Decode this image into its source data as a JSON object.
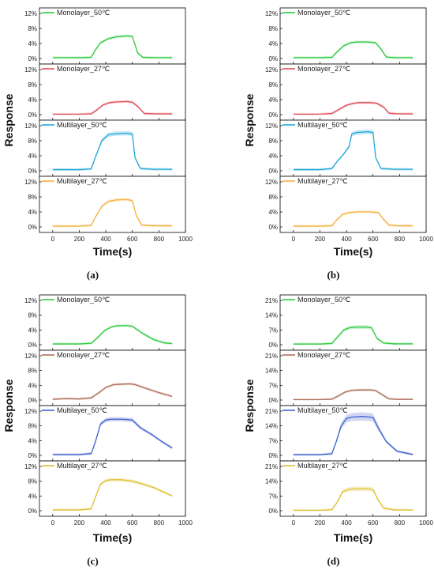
{
  "figure": {
    "panel_labels": [
      "(a)",
      "(b)",
      "(c)",
      "(d)"
    ],
    "ylabel": "Response",
    "xlabel": "Time(s)"
  },
  "colors": {
    "Monolayer_50": "#2ecc40",
    "Monolayer_27": "#e0505a",
    "Multilayer_50": "#1fa7d8",
    "Multilayer_27": "#f4b342",
    "Monolayer_27_c": "#b0705a",
    "Multilayer_50_c": "#4060d0",
    "Multilayer_27_c": "#e0c030",
    "band_opacity": 0.25
  },
  "chart_data": [
    {
      "panel": "(a)",
      "type": "line",
      "xlim": [
        -100,
        1000
      ],
      "x_ticks": [
        0,
        200,
        400,
        600,
        800,
        1000
      ],
      "ylim": [
        0,
        12
      ],
      "y_ticks": [
        0,
        4,
        8,
        12
      ],
      "y_tick_labels": [
        "0%",
        "4%",
        "8%",
        "12%"
      ],
      "series": [
        {
          "name": "Monolayer_50℃",
          "color_key": "Monolayer_50",
          "x": [
            0,
            200,
            290,
            320,
            360,
            420,
            480,
            560,
            600,
            640,
            680,
            760,
            900
          ],
          "y": [
            0.2,
            0.2,
            0.3,
            2.2,
            4.2,
            5.3,
            5.8,
            6.0,
            5.9,
            1.5,
            0.3,
            0.2,
            0.2
          ]
        },
        {
          "name": "Monolayer_27℃",
          "color_key": "Monolayer_27",
          "x": [
            0,
            200,
            290,
            330,
            380,
            430,
            480,
            560,
            600,
            640,
            690,
            760,
            900
          ],
          "y": [
            0.1,
            0.1,
            0.2,
            1.2,
            2.6,
            3.2,
            3.4,
            3.5,
            3.3,
            2.2,
            0.3,
            0.2,
            0.2
          ]
        },
        {
          "name": "Multilayer_50℃",
          "color_key": "Multilayer_50",
          "x": [
            0,
            200,
            290,
            320,
            370,
            420,
            480,
            560,
            600,
            620,
            660,
            760,
            900
          ],
          "y": [
            0.3,
            0.3,
            0.5,
            3.5,
            8.0,
            9.6,
            9.9,
            10.0,
            9.8,
            3.5,
            0.6,
            0.4,
            0.4
          ]
        },
        {
          "name": "Multilayer_27℃",
          "color_key": "Multilayer_27",
          "x": [
            0,
            200,
            290,
            320,
            370,
            420,
            480,
            560,
            600,
            630,
            670,
            760,
            900
          ],
          "y": [
            0.2,
            0.2,
            0.4,
            2.5,
            5.5,
            6.8,
            7.2,
            7.3,
            7.0,
            3.0,
            0.5,
            0.3,
            0.3
          ]
        }
      ]
    },
    {
      "panel": "(b)",
      "type": "line",
      "xlim": [
        -100,
        1000
      ],
      "x_ticks": [
        0,
        200,
        400,
        600,
        800,
        1000
      ],
      "ylim": [
        0,
        12
      ],
      "y_ticks": [
        0,
        4,
        8,
        12
      ],
      "y_tick_labels": [
        "0%",
        "4%",
        "8%",
        "12%"
      ],
      "series": [
        {
          "name": "Monolayer_50℃",
          "color_key": "Monolayer_50",
          "x": [
            0,
            200,
            290,
            330,
            380,
            430,
            480,
            560,
            620,
            660,
            700,
            760,
            900
          ],
          "y": [
            0.2,
            0.2,
            0.3,
            1.8,
            3.4,
            4.2,
            4.4,
            4.4,
            4.2,
            2.5,
            0.4,
            0.2,
            0.2
          ]
        },
        {
          "name": "Monolayer_27℃",
          "color_key": "Monolayer_27",
          "x": [
            0,
            200,
            290,
            340,
            400,
            450,
            500,
            580,
            630,
            680,
            720,
            780,
            900
          ],
          "y": [
            0.1,
            0.1,
            0.3,
            1.3,
            2.5,
            3.0,
            3.2,
            3.2,
            3.0,
            2.0,
            0.4,
            0.2,
            0.2
          ]
        },
        {
          "name": "Multilayer_50℃",
          "color_key": "Multilayer_50",
          "x": [
            0,
            200,
            290,
            330,
            380,
            420,
            440,
            480,
            560,
            600,
            620,
            660,
            760,
            900
          ],
          "y": [
            0.3,
            0.3,
            0.6,
            2.5,
            4.5,
            6.5,
            9.8,
            10.2,
            10.4,
            10.2,
            3.5,
            0.6,
            0.4,
            0.4
          ]
        },
        {
          "name": "Multilayer_27℃",
          "color_key": "Multilayer_27",
          "x": [
            0,
            200,
            290,
            330,
            370,
            420,
            480,
            580,
            640,
            680,
            720,
            780,
            900
          ],
          "y": [
            0.2,
            0.2,
            0.3,
            2.0,
            3.3,
            3.8,
            4.0,
            4.0,
            3.8,
            2.0,
            0.5,
            0.3,
            0.3
          ]
        }
      ]
    },
    {
      "panel": "(c)",
      "type": "line",
      "xlim": [
        -100,
        1000
      ],
      "x_ticks": [
        0,
        200,
        400,
        600,
        800,
        1000
      ],
      "ylim": [
        0,
        12
      ],
      "y_ticks": [
        0,
        4,
        8,
        12
      ],
      "y_tick_labels": [
        "0%",
        "4%",
        "8%",
        "12%"
      ],
      "series": [
        {
          "name": "Monolayer_50℃",
          "color_key": "Monolayer_50",
          "x": [
            0,
            200,
            290,
            340,
            390,
            440,
            480,
            560,
            600,
            680,
            760,
            840,
            900
          ],
          "y": [
            0.2,
            0.2,
            0.4,
            2.0,
            3.8,
            4.8,
            5.1,
            5.2,
            5.0,
            3.0,
            1.4,
            0.5,
            0.3
          ]
        },
        {
          "name": "Monolayer_27℃",
          "color_key": "Monolayer_27_c",
          "x": [
            0,
            100,
            200,
            290,
            340,
            400,
            460,
            520,
            580,
            620,
            700,
            800,
            900
          ],
          "y": [
            0.2,
            0.4,
            0.3,
            0.6,
            1.8,
            3.4,
            4.2,
            4.3,
            4.4,
            4.2,
            3.2,
            2.0,
            1.0
          ]
        },
        {
          "name": "Multilayer_50℃",
          "color_key": "Multilayer_50_c",
          "x": [
            0,
            200,
            290,
            320,
            360,
            400,
            440,
            520,
            600,
            660,
            740,
            820,
            900
          ],
          "y": [
            0.2,
            0.2,
            0.5,
            3.5,
            8.5,
            9.6,
            9.8,
            9.8,
            9.6,
            7.5,
            5.8,
            3.8,
            2.0
          ]
        },
        {
          "name": "Multilayer_27℃",
          "color_key": "Multilayer_27_c",
          "x": [
            0,
            200,
            290,
            320,
            360,
            400,
            440,
            520,
            600,
            680,
            760,
            840,
            900
          ],
          "y": [
            0.2,
            0.2,
            0.5,
            3.5,
            7.2,
            8.2,
            8.4,
            8.4,
            8.0,
            7.2,
            6.3,
            5.0,
            4.0
          ]
        }
      ]
    },
    {
      "panel": "(d)",
      "type": "line",
      "xlim": [
        -100,
        1000
      ],
      "x_ticks": [
        0,
        200,
        400,
        600,
        800,
        1000
      ],
      "ylim": [
        0,
        21
      ],
      "y_ticks": [
        0,
        7,
        14,
        21
      ],
      "y_tick_labels": [
        "0%",
        "7%",
        "14%",
        "21%"
      ],
      "series": [
        {
          "name": "Monolayer_50℃",
          "color_key": "Monolayer_50",
          "x": [
            0,
            200,
            290,
            330,
            380,
            420,
            460,
            540,
            590,
            630,
            680,
            760,
            900
          ],
          "y": [
            0.3,
            0.3,
            0.6,
            3.5,
            7.0,
            8.0,
            8.3,
            8.4,
            8.0,
            3.0,
            0.8,
            0.4,
            0.4
          ]
        },
        {
          "name": "Monolayer_27℃",
          "color_key": "Monolayer_27_c",
          "x": [
            0,
            200,
            290,
            340,
            390,
            440,
            500,
            580,
            620,
            670,
            720,
            780,
            900
          ],
          "y": [
            0.2,
            0.2,
            0.4,
            2.0,
            3.8,
            4.6,
            4.8,
            4.8,
            4.5,
            2.5,
            0.6,
            0.3,
            0.3
          ]
        },
        {
          "name": "Multilayer_50℃",
          "color_key": "Multilayer_50_c",
          "x": [
            0,
            200,
            290,
            320,
            360,
            400,
            440,
            520,
            600,
            640,
            700,
            780,
            900
          ],
          "y": [
            0.3,
            0.3,
            0.8,
            6.0,
            14.0,
            17.5,
            18.2,
            18.5,
            18.0,
            13.0,
            6.5,
            2.0,
            0.4
          ]
        },
        {
          "name": "Multilayer_27℃",
          "color_key": "Multilayer_27_c",
          "x": [
            0,
            200,
            290,
            330,
            370,
            420,
            480,
            560,
            600,
            640,
            680,
            760,
            900
          ],
          "y": [
            0.2,
            0.2,
            0.5,
            4.0,
            9.0,
            10.2,
            10.4,
            10.4,
            10.0,
            5.0,
            1.2,
            0.4,
            0.3
          ]
        }
      ]
    }
  ]
}
